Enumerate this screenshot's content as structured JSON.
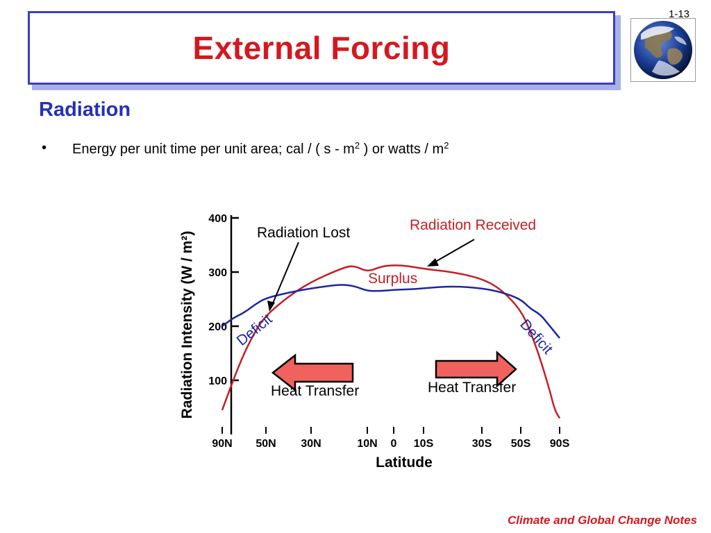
{
  "slide": {
    "number": "1-13",
    "title": "External Forcing",
    "heading": "Radiation",
    "bullet_marker": "•",
    "bullet": {
      "pre": "Energy per unit time per unit area; cal / ( s - m",
      "sup1": "2",
      "mid": " ) or watts / m",
      "sup2": "2"
    },
    "footer": "Climate and Global Change Notes",
    "globe_icon": "earth-globe"
  },
  "colors": {
    "title": "#d31920",
    "heading": "#2430b8",
    "title_border": "#3a3cc4",
    "received": "#c41e24",
    "lost": "#1d26a0",
    "arrow_fill": "#f0625d"
  },
  "chart_data": {
    "type": "line",
    "xlabel": "Latitude",
    "ylabel": "Radiation Intensity (W / m²)",
    "ylim": [
      0,
      400
    ],
    "yticks": [
      100,
      200,
      300,
      400
    ],
    "xtick_labels": [
      "90N",
      "50N",
      "30N",
      "10N",
      "0",
      "10S",
      "30S",
      "50S",
      "90S"
    ],
    "xtick_lat": [
      90,
      50,
      30,
      10,
      0,
      -10,
      -30,
      -50,
      -90
    ],
    "series": [
      {
        "name": "Radiation Received",
        "color": "#c41e24",
        "x": [
          90,
          80,
          70,
          60,
          50,
          40,
          30,
          20,
          15,
          10,
          5,
          0,
          -5,
          -10,
          -20,
          -30,
          -40,
          -50,
          -60,
          -70,
          -80,
          -85,
          -90
        ],
        "y": [
          45,
          100,
          150,
          190,
          220,
          255,
          282,
          305,
          313,
          300,
          310,
          313,
          311,
          306,
          300,
          288,
          268,
          230,
          190,
          140,
          80,
          45,
          30
        ]
      },
      {
        "name": "Radiation Lost",
        "color": "#1d26a0",
        "x": [
          90,
          80,
          70,
          60,
          50,
          40,
          30,
          20,
          15,
          10,
          5,
          0,
          -5,
          -10,
          -20,
          -30,
          -40,
          -50,
          -60,
          -70,
          -80,
          -90
        ],
        "y": [
          200,
          215,
          225,
          240,
          252,
          262,
          270,
          277,
          275,
          265,
          265,
          267,
          268,
          270,
          274,
          270,
          263,
          250,
          232,
          222,
          200,
          178
        ]
      }
    ],
    "annotations": {
      "radiation_lost": "Radiation Lost",
      "radiation_received": "Radiation Received",
      "surplus": "Surplus",
      "deficit_left": "Deficit",
      "deficit_right": "Deficit",
      "heat_transfer_left": "Heat Transfer",
      "heat_transfer_right": "Heat Transfer"
    }
  }
}
